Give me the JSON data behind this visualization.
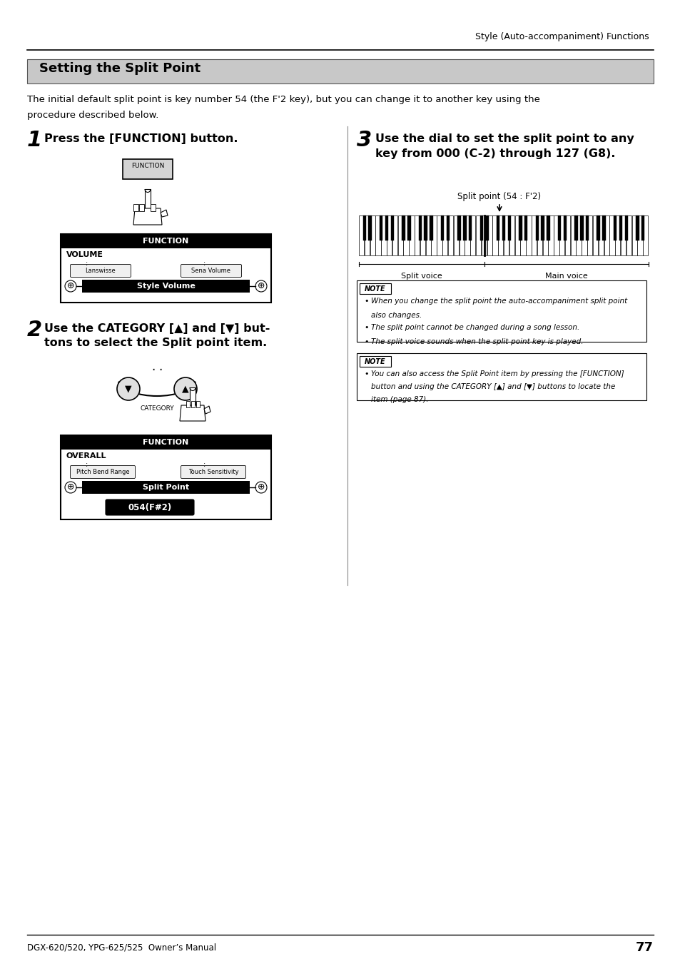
{
  "page_title": "Style (Auto-accompaniment) Functions",
  "section_title": "Setting the Split Point",
  "section_bg": "#c8c8c8",
  "body_text1": "The initial default split point is key number 54 (the F'2 key), but you can change it to another key using the",
  "body_text2": "procedure described below.",
  "step1_num": "1",
  "step1_text": "Press the [FUNCTION] button.",
  "step2_num": "2",
  "step2_text_a": "Use the CATEGORY [▲] and [▼] but-",
  "step2_text_b": "tons to select the Split point item.",
  "step3_num": "3",
  "step3_text_a": "Use the dial to set the split point to any",
  "step3_text_b": "key from 000 (C-2) through 127 (G8).",
  "lcd1_title": "FUNCTION",
  "lcd1_cat": "VOLUME",
  "lcd1_btn1": "Lanswisse",
  "lcd1_btn2": "Sena Volume",
  "lcd1_sel": "Style Volume",
  "lcd2_title": "FUNCTION",
  "lcd2_cat": "OVERALL",
  "lcd2_btn1": "Pitch Bend Range",
  "lcd2_btn2": "Touch Sensitivity",
  "lcd2_sel": "Split Point",
  "lcd2_val": "054(F#2)",
  "split_label": "Split point (54 : F'2)",
  "split_voice": "Split voice",
  "main_voice": "Main voice",
  "note1": [
    "When you change the split point the auto-accompaniment split point",
    "also changes.",
    "The split point cannot be changed during a song lesson.",
    "The split voice sounds when the split-point key is played."
  ],
  "note2": [
    "You can also access the Split Point item by pressing the [FUNCTION]",
    "button and using the CATEGORY [▲] and [▼] buttons to locate the",
    "item (page 87)."
  ],
  "footer": "DGX-620/520, YPG-625/525  Owner’s Manual",
  "page_num": "77",
  "bg": "#ffffff"
}
